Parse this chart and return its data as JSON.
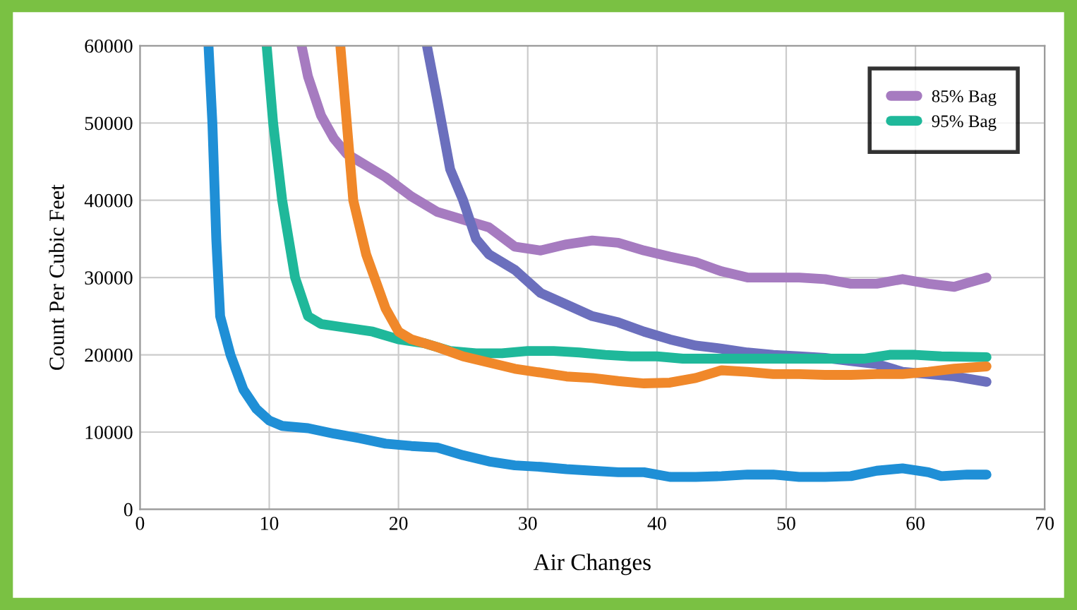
{
  "chart_data": {
    "type": "line",
    "xlabel": "Air Changes",
    "ylabel": "Count Per Cubic Feet",
    "xlim": [
      0,
      70
    ],
    "xticks": [
      0,
      10,
      20,
      30,
      40,
      50,
      60,
      70
    ],
    "ylim": [
      0,
      60000
    ],
    "yticks": [
      0,
      10000,
      20000,
      30000,
      40000,
      50000,
      60000
    ],
    "grid": true,
    "legend": "top right",
    "marker": "none",
    "line_style": "solid",
    "series": [
      {
        "name": "85% Bag",
        "color": "#a67bc0",
        "x": [
          12.5,
          13,
          14,
          15,
          16,
          17,
          19,
          21,
          23,
          25,
          27,
          29,
          31,
          33,
          35,
          37,
          39,
          41,
          43,
          45,
          47,
          49,
          51,
          53,
          55,
          57,
          59,
          61,
          63,
          64,
          65.5
        ],
        "values": [
          60000,
          56000,
          51000,
          48000,
          46000,
          45000,
          43000,
          40500,
          38500,
          37500,
          36500,
          34000,
          33500,
          34300,
          34800,
          34500,
          33500,
          32700,
          32000,
          30800,
          30000,
          30000,
          30000,
          29800,
          29200,
          29200,
          29800,
          29200,
          28800,
          29300,
          30000
        ]
      },
      {
        "color": "#6b6fbd",
        "x": [
          22.2,
          23,
          24,
          25,
          26,
          27,
          29,
          31,
          33,
          35,
          37,
          39,
          41,
          43,
          45,
          47,
          49,
          51,
          53,
          55,
          57,
          59,
          61,
          63,
          65.5
        ],
        "values": [
          60000,
          53000,
          44000,
          40000,
          35000,
          33000,
          31000,
          28000,
          26500,
          25000,
          24200,
          23000,
          22000,
          21200,
          20800,
          20300,
          20000,
          19800,
          19600,
          19200,
          18800,
          17800,
          17500,
          17200,
          16500
        ]
      },
      {
        "name": "95% Bag",
        "color": "#1fb89a",
        "x": [
          9.8,
          10.3,
          11,
          12,
          13,
          14,
          16,
          18,
          20,
          22,
          24,
          26,
          28,
          30,
          32,
          34,
          36,
          38,
          40,
          42,
          46,
          50,
          54,
          56,
          58,
          60,
          62,
          65.5
        ],
        "values": [
          60000,
          50000,
          40000,
          30000,
          25000,
          24000,
          23500,
          23000,
          22000,
          21500,
          20500,
          20200,
          20200,
          20500,
          20500,
          20300,
          20000,
          19800,
          19800,
          19500,
          19500,
          19500,
          19500,
          19500,
          20000,
          20000,
          19800,
          19700
        ]
      },
      {
        "color": "#f0882a",
        "x": [
          15.5,
          16,
          16.5,
          17.5,
          19,
          20,
          21,
          23,
          25,
          27,
          29,
          31,
          33,
          35,
          37,
          39,
          41,
          43,
          45,
          47,
          49,
          51,
          53,
          55,
          57,
          59,
          61,
          63,
          65.5
        ],
        "values": [
          60000,
          50000,
          40000,
          33000,
          26000,
          23000,
          22000,
          21000,
          19800,
          19000,
          18200,
          17700,
          17200,
          17000,
          16600,
          16300,
          16400,
          17000,
          18000,
          17800,
          17500,
          17500,
          17400,
          17400,
          17500,
          17500,
          17800,
          18200,
          18500
        ]
      },
      {
        "color": "#1f8fd6",
        "x": [
          5.3,
          5.6,
          5.9,
          6.2,
          7,
          8,
          9,
          10,
          11,
          13,
          15,
          17,
          19,
          21,
          23,
          25,
          27,
          29,
          31,
          33,
          35,
          37,
          39,
          41,
          43,
          45,
          47,
          49,
          51,
          53,
          55,
          57,
          59,
          61,
          62,
          64,
          65.5
        ],
        "values": [
          60000,
          50000,
          35000,
          25000,
          20000,
          15500,
          13000,
          11500,
          10800,
          10500,
          9800,
          9200,
          8500,
          8200,
          8000,
          7000,
          6200,
          5700,
          5500,
          5200,
          5000,
          4800,
          4800,
          4200,
          4200,
          4300,
          4500,
          4500,
          4200,
          4200,
          4300,
          5000,
          5300,
          4800,
          4300,
          4500,
          4500
        ]
      }
    ]
  }
}
